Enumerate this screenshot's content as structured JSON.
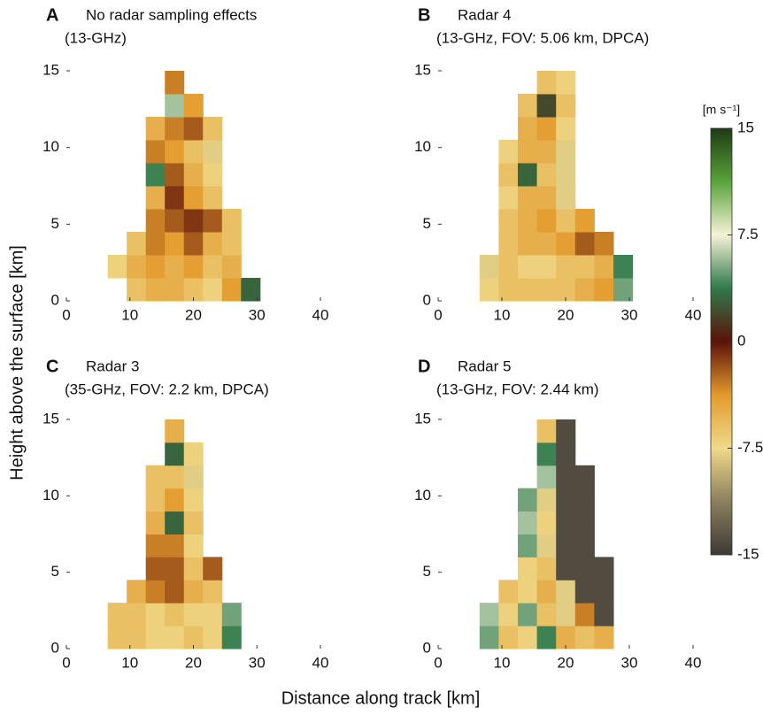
{
  "chart_data": [
    {
      "type": "heatmap",
      "panel": "A",
      "title": "No radar sampling effects",
      "subtitle": "(13-GHz)",
      "x": [
        8,
        11,
        14,
        17,
        20,
        23,
        26,
        29
      ],
      "y": [
        0.75,
        2.25,
        3.75,
        5.25,
        6.75,
        8.25,
        9.75,
        11.25,
        12.75,
        14.25
      ],
      "xlim": [
        0,
        40
      ],
      "ylim": [
        0,
        15
      ],
      "xticks": [
        0,
        10,
        20,
        30,
        40
      ],
      "yticks": [
        0,
        5,
        10,
        15
      ],
      "z": [
        [
          null,
          -6,
          -5,
          -5,
          -6,
          -7,
          -4,
          3
        ],
        [
          -7,
          -5,
          -4,
          -5,
          -4,
          -6,
          -5,
          null
        ],
        [
          null,
          -6,
          -3,
          -4,
          -2,
          -5,
          -6,
          null
        ],
        [
          null,
          null,
          -3,
          -2,
          -1,
          -2,
          -6,
          null
        ],
        [
          null,
          null,
          -5,
          -1,
          -4,
          -6,
          null,
          null
        ],
        [
          null,
          null,
          4,
          -2,
          -5,
          -7,
          null,
          null
        ],
        [
          null,
          null,
          -3,
          -4,
          -6,
          -8,
          null,
          null
        ],
        [
          null,
          null,
          -5,
          -3,
          -2,
          -6,
          null,
          null
        ],
        [
          null,
          null,
          null,
          6,
          -4,
          null,
          null,
          null
        ],
        [
          null,
          null,
          null,
          -3,
          null,
          null,
          null,
          null
        ]
      ]
    },
    {
      "type": "heatmap",
      "panel": "B",
      "title": "Radar 4",
      "subtitle": "(13-GHz, FOV: 5.06 km, DPCA)",
      "x": [
        8,
        11,
        14,
        17,
        20,
        23,
        26,
        29
      ],
      "y": [
        0.75,
        2.25,
        3.75,
        5.25,
        6.75,
        8.25,
        9.75,
        11.25,
        12.75,
        14.25
      ],
      "xlim": [
        0,
        40
      ],
      "ylim": [
        0,
        15
      ],
      "xticks": [
        0,
        10,
        20,
        30,
        40
      ],
      "yticks": [
        0,
        5,
        10,
        15
      ],
      "z": [
        [
          -7,
          -6,
          -6,
          -6,
          -6,
          -5,
          -4,
          5
        ],
        [
          -8,
          -6,
          -7,
          -7,
          -6,
          -6,
          -5,
          4
        ],
        [
          null,
          -6,
          -5,
          -5,
          -4,
          -2,
          -3,
          null
        ],
        [
          null,
          -6,
          -5,
          -4,
          -6,
          -4,
          null,
          null
        ],
        [
          null,
          -7,
          -5,
          -5,
          -8,
          null,
          null,
          null
        ],
        [
          null,
          -6,
          3,
          -6,
          -8,
          null,
          null,
          null
        ],
        [
          null,
          -7,
          -5,
          -5,
          -8,
          null,
          null,
          null
        ],
        [
          null,
          null,
          -5,
          -4,
          -7,
          null,
          null,
          null
        ],
        [
          null,
          null,
          -6,
          2,
          -6,
          null,
          null,
          null
        ],
        [
          null,
          null,
          null,
          -6,
          -7,
          null,
          null,
          null
        ]
      ]
    },
    {
      "type": "heatmap",
      "panel": "C",
      "title": "Radar 3",
      "subtitle": "(35-GHz, FOV: 2.2 km, DPCA)",
      "x": [
        8,
        11,
        14,
        17,
        20,
        23,
        26,
        29
      ],
      "y": [
        0.75,
        2.25,
        3.75,
        5.25,
        6.75,
        8.25,
        9.75,
        11.25,
        12.75,
        14.25
      ],
      "xlim": [
        0,
        40
      ],
      "ylim": [
        0,
        15
      ],
      "xticks": [
        0,
        10,
        20,
        30,
        40
      ],
      "yticks": [
        0,
        5,
        10,
        15
      ],
      "z": [
        [
          -6,
          -6,
          -7,
          -7,
          -6,
          -7,
          4,
          null
        ],
        [
          -6,
          -6,
          -7,
          -6,
          -7,
          -7,
          5,
          null
        ],
        [
          null,
          -5,
          -3,
          -2,
          -5,
          -6,
          null,
          null
        ],
        [
          null,
          null,
          -2,
          -2,
          -6,
          -2,
          null,
          null
        ],
        [
          null,
          null,
          -3,
          -3,
          -7,
          null,
          null,
          null
        ],
        [
          null,
          null,
          -5,
          3,
          -6,
          null,
          null,
          null
        ],
        [
          null,
          null,
          -6,
          -4,
          -7,
          null,
          null,
          null
        ],
        [
          null,
          null,
          -6,
          -6,
          -8,
          null,
          null,
          null
        ],
        [
          null,
          null,
          null,
          3,
          -7,
          null,
          null,
          null
        ],
        [
          null,
          null,
          null,
          -5,
          null,
          null,
          null,
          null
        ]
      ]
    },
    {
      "type": "heatmap",
      "panel": "D",
      "title": "Radar 5",
      "subtitle": "(13-GHz, FOV: 2.44 km)",
      "x": [
        8,
        11,
        14,
        17,
        20,
        23,
        26,
        29
      ],
      "y": [
        0.75,
        2.25,
        3.75,
        5.25,
        6.75,
        8.25,
        9.75,
        11.25,
        12.75,
        14.25
      ],
      "xlim": [
        0,
        40
      ],
      "ylim": [
        0,
        15
      ],
      "xticks": [
        0,
        10,
        20,
        30,
        40
      ],
      "yticks": [
        0,
        5,
        10,
        15
      ],
      "z": [
        [
          5,
          -6,
          -7,
          4,
          -5,
          -6,
          -5,
          null
        ],
        [
          6,
          -7,
          5,
          -6,
          -8,
          -3,
          -14,
          null
        ],
        [
          null,
          -6,
          -7,
          -5,
          -8,
          -14,
          -14,
          null
        ],
        [
          null,
          null,
          -7,
          -6,
          -14,
          -14,
          -14,
          null
        ],
        [
          null,
          null,
          5,
          -8,
          -14,
          -14,
          null,
          null
        ],
        [
          null,
          null,
          6,
          -7,
          -14,
          -14,
          null,
          null
        ],
        [
          null,
          null,
          5,
          -8,
          -14,
          -14,
          null,
          null
        ],
        [
          null,
          null,
          null,
          6,
          -14,
          -14,
          null,
          null
        ],
        [
          null,
          null,
          null,
          4,
          -14,
          null,
          null,
          null
        ],
        [
          null,
          null,
          null,
          -6,
          -14,
          null,
          null,
          null
        ]
      ]
    }
  ],
  "xlabel": "Distance along track [km]",
  "ylabel": "Height above the surface [km]",
  "colorbar": {
    "label": "[m s⁻¹]",
    "lim": [
      -15,
      15
    ],
    "ticks": [
      -15,
      -7.5,
      0,
      7.5,
      15
    ],
    "colors": [
      "#3d3a35",
      "#8b7f5e",
      "#efd98a",
      "#e39a2c",
      "#5c1208",
      "#2f7a4a",
      "#f4f2d6",
      "#5aa33a",
      "#1e3a14"
    ]
  }
}
